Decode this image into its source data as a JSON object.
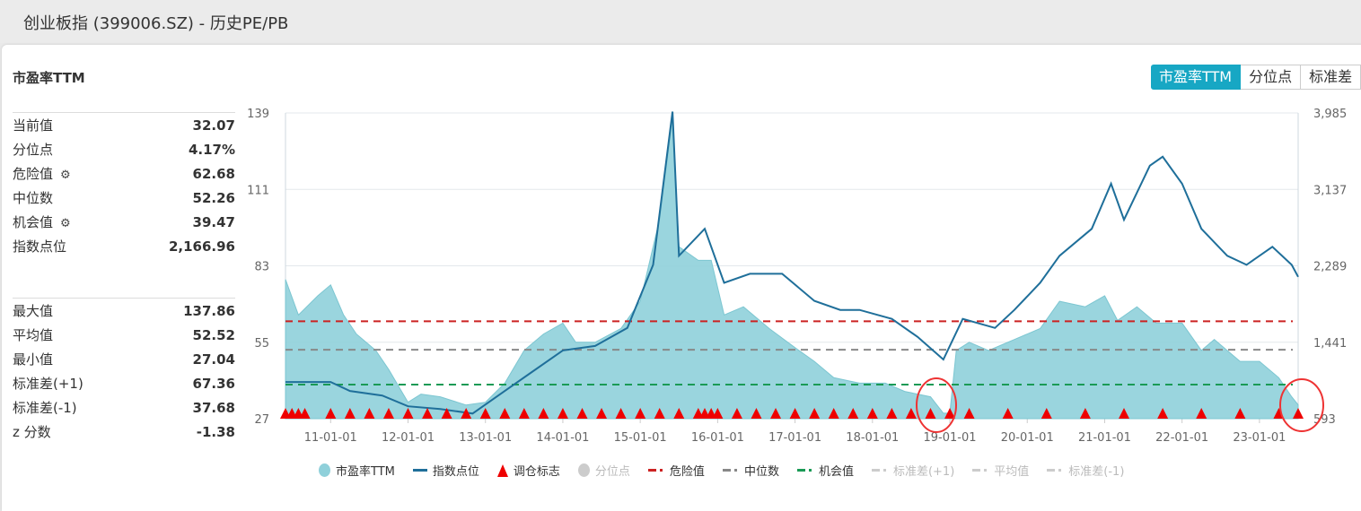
{
  "header": {
    "title": "创业板指 (399006.SZ) - 历史PE/PB"
  },
  "panel": {
    "title": "市盈率TTM"
  },
  "stats_top": [
    {
      "label": "当前值",
      "value": "32.07"
    },
    {
      "label": "分位点",
      "value": "4.17%"
    },
    {
      "label": "危险值",
      "value": "62.68",
      "gear": true
    },
    {
      "label": "中位数",
      "value": "52.26"
    },
    {
      "label": "机会值",
      "value": "39.47",
      "gear": true
    },
    {
      "label": "指数点位",
      "value": "2,166.96"
    }
  ],
  "stats_bottom": [
    {
      "label": "最大值",
      "value": "137.86"
    },
    {
      "label": "平均值",
      "value": "52.52"
    },
    {
      "label": "最小值",
      "value": "27.04"
    },
    {
      "label": "标准差(+1)",
      "value": "67.36"
    },
    {
      "label": "标准差(-1)",
      "value": "37.68"
    },
    {
      "label": "z 分数",
      "value": "-1.38"
    }
  ],
  "tabs": [
    {
      "label": "市盈率TTM",
      "active": true
    },
    {
      "label": "分位点"
    },
    {
      "label": "标准差"
    }
  ],
  "colors": {
    "pe": "#8fd0da",
    "index": "#1f6f9a",
    "marker": "#ee0000",
    "danger": "#cc2222",
    "median": "#888888",
    "opportunity": "#1a9a55",
    "accent": "#17a7c4"
  },
  "chart_data": {
    "type": "area+line",
    "x_ticks": [
      "11-01-01",
      "12-01-01",
      "13-01-01",
      "14-01-01",
      "15-01-01",
      "16-01-01",
      "17-01-01",
      "18-01-01",
      "19-01-01",
      "20-01-01",
      "21-01-01",
      "22-01-01",
      "23-01-01"
    ],
    "x_range": [
      "2010-06",
      "2023-07"
    ],
    "y_left": {
      "ticks": [
        27,
        55,
        83,
        111,
        139
      ],
      "range": [
        27,
        139
      ]
    },
    "y_right": {
      "ticks": [
        "593",
        "1,441",
        "2,289",
        "3,137",
        "3,985"
      ],
      "range": [
        593,
        3985
      ]
    },
    "grid": "horizontal",
    "legend_position": "bottom",
    "legend": [
      {
        "name": "市盈率TTM",
        "symbol": "circle",
        "color": "#8fd0da"
      },
      {
        "name": "指数点位",
        "symbol": "line",
        "color": "#1f6f9a"
      },
      {
        "name": "调仓标志",
        "symbol": "triangle",
        "color": "#ee0000"
      },
      {
        "name": "分位点",
        "symbol": "circle",
        "color": "#cccccc",
        "off": true
      },
      {
        "name": "危险值",
        "symbol": "dash",
        "color": "#cc2222"
      },
      {
        "name": "中位数",
        "symbol": "dash",
        "color": "#888888"
      },
      {
        "name": "机会值",
        "symbol": "dash",
        "color": "#1a9a55"
      },
      {
        "name": "标准差(+1)",
        "symbol": "dash",
        "color": "#cccccc",
        "off": true
      },
      {
        "name": "平均值",
        "symbol": "dash",
        "color": "#cccccc",
        "off": true
      },
      {
        "name": "标准差(-1)",
        "symbol": "dash",
        "color": "#cccccc",
        "off": true
      }
    ],
    "reference_lines": {
      "danger": 62.68,
      "median": 52.26,
      "opportunity": 39.47
    },
    "pe_series": [
      [
        "2010-06",
        78
      ],
      [
        "2010-08",
        65
      ],
      [
        "2010-11",
        72
      ],
      [
        "2011-01",
        76
      ],
      [
        "2011-03",
        65
      ],
      [
        "2011-05",
        58
      ],
      [
        "2011-08",
        52
      ],
      [
        "2011-10",
        45
      ],
      [
        "2012-01",
        33
      ],
      [
        "2012-03",
        36
      ],
      [
        "2012-06",
        35
      ],
      [
        "2012-10",
        32
      ],
      [
        "2013-01",
        33
      ],
      [
        "2013-04",
        40
      ],
      [
        "2013-07",
        52
      ],
      [
        "2013-10",
        58
      ],
      [
        "2014-01",
        62
      ],
      [
        "2014-03",
        55
      ],
      [
        "2014-06",
        55
      ],
      [
        "2014-10",
        60
      ],
      [
        "2015-01",
        70
      ],
      [
        "2015-04",
        100
      ],
      [
        "2015-06",
        137
      ],
      [
        "2015-07",
        90
      ],
      [
        "2015-10",
        85
      ],
      [
        "2015-12",
        85
      ],
      [
        "2016-02",
        65
      ],
      [
        "2016-05",
        68
      ],
      [
        "2016-09",
        60
      ],
      [
        "2017-01",
        53
      ],
      [
        "2017-04",
        48
      ],
      [
        "2017-07",
        42
      ],
      [
        "2017-11",
        40
      ],
      [
        "2018-03",
        40
      ],
      [
        "2018-06",
        37
      ],
      [
        "2018-10",
        35
      ],
      [
        "2018-12",
        29
      ],
      [
        "2019-01",
        29
      ],
      [
        "2019-02",
        52
      ],
      [
        "2019-04",
        55
      ],
      [
        "2019-07",
        52
      ],
      [
        "2019-11",
        56
      ],
      [
        "2020-03",
        60
      ],
      [
        "2020-06",
        70
      ],
      [
        "2020-10",
        68
      ],
      [
        "2021-01",
        72
      ],
      [
        "2021-03",
        63
      ],
      [
        "2021-06",
        68
      ],
      [
        "2021-09",
        62
      ],
      [
        "2022-01",
        62
      ],
      [
        "2022-04",
        52
      ],
      [
        "2022-06",
        56
      ],
      [
        "2022-10",
        48
      ],
      [
        "2023-01",
        48
      ],
      [
        "2023-04",
        42
      ],
      [
        "2023-06",
        35
      ],
      [
        "2023-07",
        32.07
      ]
    ],
    "index_series": [
      [
        "2010-06",
        1000
      ],
      [
        "2011-01",
        1000
      ],
      [
        "2011-04",
        900
      ],
      [
        "2011-09",
        850
      ],
      [
        "2012-01",
        730
      ],
      [
        "2012-06",
        700
      ],
      [
        "2012-11",
        650
      ],
      [
        "2013-04",
        900
      ],
      [
        "2013-08",
        1100
      ],
      [
        "2014-01",
        1350
      ],
      [
        "2014-06",
        1400
      ],
      [
        "2014-11",
        1600
      ],
      [
        "2015-03",
        2300
      ],
      [
        "2015-06",
        4000
      ],
      [
        "2015-07",
        2400
      ],
      [
        "2015-11",
        2700
      ],
      [
        "2016-02",
        2100
      ],
      [
        "2016-06",
        2200
      ],
      [
        "2016-11",
        2200
      ],
      [
        "2017-04",
        1900
      ],
      [
        "2017-08",
        1800
      ],
      [
        "2017-11",
        1800
      ],
      [
        "2018-04",
        1700
      ],
      [
        "2018-08",
        1500
      ],
      [
        "2018-12",
        1250
      ],
      [
        "2019-03",
        1700
      ],
      [
        "2019-08",
        1600
      ],
      [
        "2019-11",
        1800
      ],
      [
        "2020-03",
        2100
      ],
      [
        "2020-06",
        2400
      ],
      [
        "2020-11",
        2700
      ],
      [
        "2021-02",
        3200
      ],
      [
        "2021-04",
        2800
      ],
      [
        "2021-08",
        3400
      ],
      [
        "2021-10",
        3500
      ],
      [
        "2022-01",
        3200
      ],
      [
        "2022-04",
        2700
      ],
      [
        "2022-08",
        2400
      ],
      [
        "2022-11",
        2300
      ],
      [
        "2023-03",
        2500
      ],
      [
        "2023-06",
        2300
      ],
      [
        "2023-07",
        2166.96
      ]
    ],
    "rebalance_markers": [
      "2010-06",
      "2010-07",
      "2010-08",
      "2010-09",
      "2011-01",
      "2011-04",
      "2011-07",
      "2011-10",
      "2012-01",
      "2012-04",
      "2012-07",
      "2012-10",
      "2013-01",
      "2013-04",
      "2013-07",
      "2013-10",
      "2014-01",
      "2014-04",
      "2014-07",
      "2014-10",
      "2015-01",
      "2015-04",
      "2015-07",
      "2015-10",
      "2015-11",
      "2015-12",
      "2016-01",
      "2016-04",
      "2016-07",
      "2016-10",
      "2017-01",
      "2017-04",
      "2017-07",
      "2017-10",
      "2018-01",
      "2018-04",
      "2018-07",
      "2018-10",
      "2019-01",
      "2019-04",
      "2019-10",
      "2020-04",
      "2020-10",
      "2021-04",
      "2021-10",
      "2022-04",
      "2022-10",
      "2023-04",
      "2023-07"
    ]
  }
}
